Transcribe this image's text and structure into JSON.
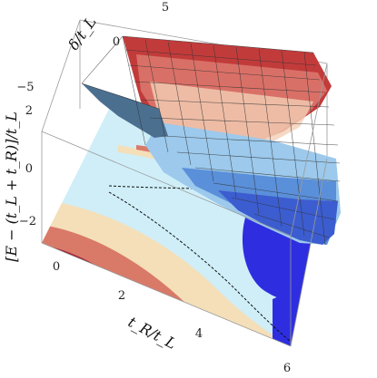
{
  "chart_data": {
    "type": "surface3d",
    "title": "",
    "axes": {
      "x": {
        "label": "t_R/t_L",
        "range": [
          0,
          6
        ],
        "ticks": [
          "0",
          "2",
          "4",
          "6"
        ]
      },
      "y": {
        "label": "δ/t_L",
        "range": [
          -5,
          5
        ],
        "ticks": [
          "−5",
          "0",
          "5"
        ]
      },
      "z": {
        "label": "[E − (t_L + t_R)]/t_L",
        "range": [
          -3,
          2
        ],
        "ticks": [
          "2",
          "0",
          "−2"
        ]
      }
    },
    "surface": {
      "colormap": "blue-to-red (temperature)",
      "mesh": true,
      "valley_along": "δ ≈ 0",
      "z_range_shown": [
        -3,
        2
      ]
    },
    "floor_contours": {
      "colors": [
        "#9e1b32",
        "#d97a68",
        "#f4dfb9",
        "#cfeef8",
        "#2e2ee0"
      ],
      "dashed_lines": 2
    }
  }
}
